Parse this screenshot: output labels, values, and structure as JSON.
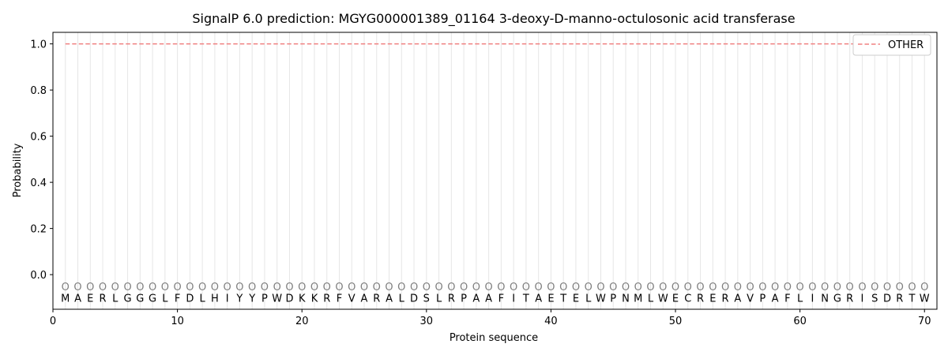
{
  "chart_data": {
    "type": "line",
    "title": "SignalP 6.0 prediction: MGYG000001389_01164 3-deoxy-D-manno-octulosonic acid transferase",
    "xlabel": "Protein sequence",
    "ylabel": "Probability",
    "xlim": [
      0,
      71
    ],
    "ylim": [
      -0.15,
      1.05
    ],
    "x_ticks": [
      0,
      10,
      20,
      30,
      40,
      50,
      60,
      70
    ],
    "y_ticks": [
      0.0,
      0.2,
      0.4,
      0.6,
      0.8,
      1.0
    ],
    "x_tick_labels": [
      "0",
      "10",
      "20",
      "30",
      "40",
      "50",
      "60",
      "70"
    ],
    "y_tick_labels": [
      "0.0",
      "0.2",
      "0.4",
      "0.6",
      "0.8",
      "1.0"
    ],
    "grid": "vertical lines at each residue",
    "legend": {
      "placement": "top-right",
      "entries": [
        "OTHER"
      ]
    },
    "series": [
      {
        "name": "OTHER",
        "color": "#f08080",
        "style": "dashed",
        "x_start": 1,
        "x_end": 70,
        "value": 1.0
      }
    ],
    "sequence": [
      "M",
      "A",
      "E",
      "R",
      "L",
      "G",
      "G",
      "G",
      "L",
      "F",
      "D",
      "L",
      "H",
      "I",
      "Y",
      "Y",
      "P",
      "W",
      "D",
      "K",
      "K",
      "R",
      "F",
      "V",
      "A",
      "R",
      "A",
      "L",
      "D",
      "S",
      "L",
      "R",
      "P",
      "A",
      "A",
      "F",
      "I",
      "T",
      "A",
      "E",
      "T",
      "E",
      "L",
      "W",
      "P",
      "N",
      "M",
      "L",
      "W",
      "E",
      "C",
      "R",
      "E",
      "R",
      "A",
      "V",
      "P",
      "A",
      "F",
      "L",
      "I",
      "N",
      "G",
      "R",
      "I",
      "S",
      "D",
      "R",
      "T",
      "W"
    ],
    "region_labels": [
      "O",
      "O",
      "O",
      "O",
      "O",
      "O",
      "O",
      "O",
      "O",
      "O",
      "O",
      "O",
      "O",
      "O",
      "O",
      "O",
      "O",
      "O",
      "O",
      "O",
      "O",
      "O",
      "O",
      "O",
      "O",
      "O",
      "O",
      "O",
      "O",
      "O",
      "O",
      "O",
      "O",
      "O",
      "O",
      "O",
      "O",
      "O",
      "O",
      "O",
      "O",
      "O",
      "O",
      "O",
      "O",
      "O",
      "O",
      "O",
      "O",
      "O",
      "O",
      "O",
      "O",
      "O",
      "O",
      "O",
      "O",
      "O",
      "O",
      "O",
      "O",
      "O",
      "O",
      "O",
      "O",
      "O",
      "O",
      "O",
      "O",
      "O"
    ]
  }
}
